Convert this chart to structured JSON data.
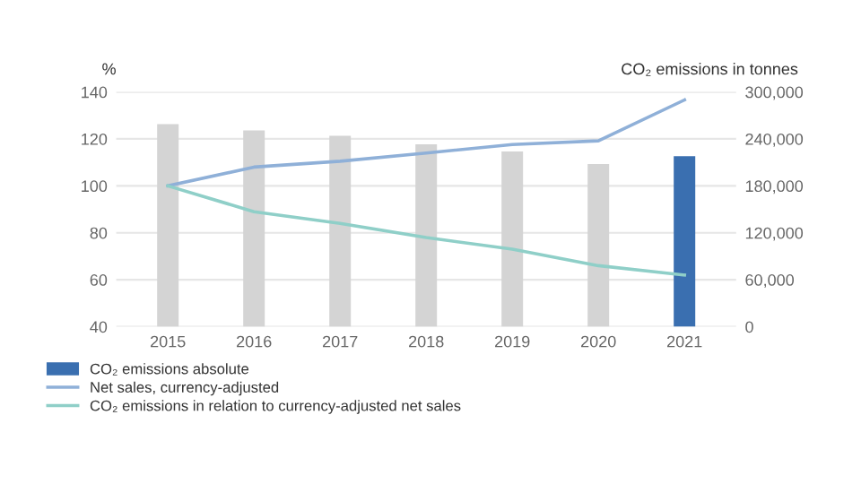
{
  "chart_data": {
    "type": "bar",
    "ylabel": "%",
    "y2label": "CO₂ emissions in tonnes",
    "categories": [
      "2015",
      "2016",
      "2017",
      "2018",
      "2019",
      "2020",
      "2021"
    ],
    "series": [
      {
        "name": "CO₂ emissions absolute",
        "axis": "y2",
        "color": "#3a6fb0",
        "colors": [
          "#d4d4d4",
          "#d4d4d4",
          "#d4d4d4",
          "#d4d4d4",
          "#d4d4d4",
          "#d4d4d4",
          "#3a6fb0"
        ],
        "values": [
          259000,
          251000,
          244000,
          233000,
          224000,
          208000,
          218000
        ]
      },
      {
        "name": "Net sales, currency-adjusted",
        "type": "line",
        "color": "#8fb0d8",
        "values": [
          100,
          108,
          110.5,
          114,
          117.6,
          119.2,
          136.6
        ]
      },
      {
        "name": "CO₂ emissions in relation to currency-adjusted net sales",
        "type": "line",
        "color": "#8fcfc8",
        "values": [
          100,
          89,
          84,
          78,
          73,
          66,
          62
        ]
      }
    ],
    "ylim": [
      40,
      140
    ],
    "yticks": [
      40,
      60,
      80,
      100,
      120,
      140
    ],
    "y2lim": [
      0,
      300000
    ],
    "y2ticks": [
      {
        "value": 0,
        "label": "0"
      },
      {
        "value": 60000,
        "label": "60,000"
      },
      {
        "value": 120000,
        "label": "120,000"
      },
      {
        "value": 180000,
        "label": "180,000"
      },
      {
        "value": 240000,
        "label": "240,000"
      },
      {
        "value": 300000,
        "label": "300,000"
      }
    ],
    "grid": "y",
    "legend": "bottom left"
  }
}
